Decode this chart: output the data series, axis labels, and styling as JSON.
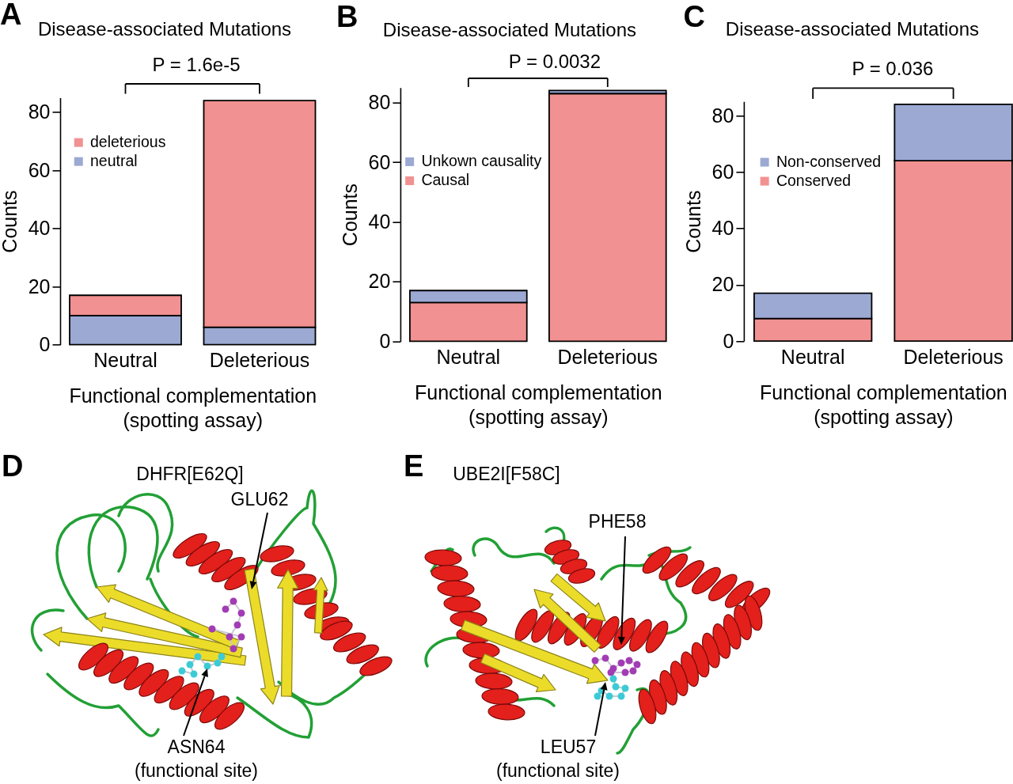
{
  "chart_data": [
    {
      "type": "bar",
      "title": "Disease-associated Mutations",
      "xlabel": "Functional complementation (spotting assay)",
      "ylabel": "Counts",
      "categories": [
        "Neutral",
        "Deleterious"
      ],
      "stacked": true,
      "series": [
        {
          "name": "neutral",
          "color": "#9ba9d3",
          "values": [
            10,
            6
          ]
        },
        {
          "name": "deleterious",
          "color": "#f29191",
          "values": [
            7,
            78
          ]
        }
      ],
      "ylim": [
        0,
        85
      ],
      "yticks": [
        0,
        20,
        40,
        60,
        80
      ],
      "legend": "top left",
      "annotations": [
        "A",
        "P = 1.6e-5"
      ]
    },
    {
      "type": "bar",
      "title": "Disease-associated Mutations",
      "xlabel": "Functional complementation (spotting assay)",
      "ylabel": "Counts",
      "categories": [
        "Neutral",
        "Deleterious"
      ],
      "stacked": true,
      "series": [
        {
          "name": "Causal",
          "color": "#f29191",
          "values": [
            13,
            83
          ]
        },
        {
          "name": "Unkown causality",
          "color": "#9ba9d3",
          "values": [
            4,
            1
          ]
        }
      ],
      "ylim": [
        0,
        85
      ],
      "yticks": [
        0,
        20,
        40,
        60,
        80
      ],
      "legend": "top left",
      "annotations": [
        "B",
        "P = 0.0032"
      ]
    },
    {
      "type": "bar",
      "title": "Disease-associated Mutations",
      "xlabel": "Functional complementation (spotting assay)",
      "ylabel": "Counts",
      "categories": [
        "Neutral",
        "Deleterious"
      ],
      "stacked": true,
      "series": [
        {
          "name": "Conserved",
          "color": "#f29191",
          "values": [
            8,
            64
          ]
        },
        {
          "name": "Non-conserved",
          "color": "#9ba9d3",
          "values": [
            9,
            20
          ]
        }
      ],
      "ylim": [
        0,
        85
      ],
      "yticks": [
        0,
        20,
        40,
        60,
        80
      ],
      "legend": "top left",
      "annotations": [
        "C",
        "P = 0.036"
      ]
    },
    {
      "type": "other",
      "title": "DHFR[E62Q]",
      "annotations": [
        "D",
        "GLU62",
        "ASN64",
        "(functional site)"
      ]
    },
    {
      "type": "other",
      "title": "UBE2I[F58C]",
      "annotations": [
        "E",
        "PHE58",
        "LEU57",
        "(functional site)"
      ]
    }
  ]
}
